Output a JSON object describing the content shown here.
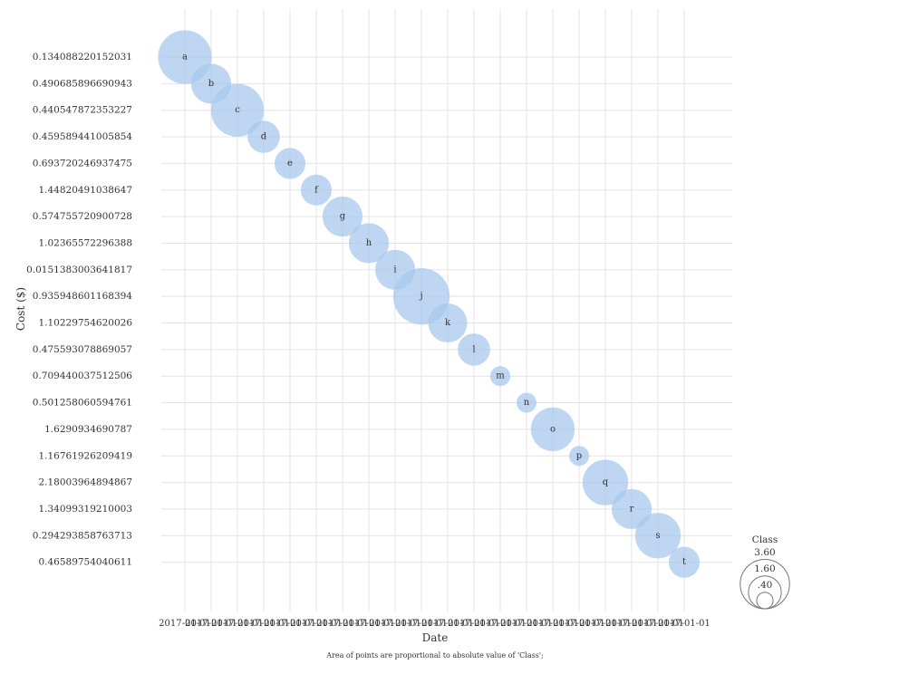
{
  "chart_data": {
    "type": "scatter",
    "xlabel": "Date",
    "ylabel": "Cost ($)",
    "caption": "Area of points are proportional to absolute value of 'Class';",
    "legend": {
      "title": "Class",
      "placement": "right",
      "values": [
        "3.60",
        "1.60",
        ".40"
      ],
      "magnitudes": [
        3.6,
        1.6,
        0.4
      ]
    },
    "x_ticks": [
      "2017-01-01",
      "2017-01-01",
      "2017-01-01",
      "2017-01-01",
      "2017-01-01",
      "2017-01-01",
      "2017-01-01",
      "2017-01-01",
      "2017-01-01",
      "2017-01-01",
      "2017-01-01",
      "2017-01-01",
      "2017-01-01",
      "2017-01-01",
      "2017-01-01",
      "2017-01-01",
      "2017-01-01",
      "2017-01-01",
      "2017-01-01",
      "2017-01-01"
    ],
    "categories": [
      "0.134088220152031",
      "0.490685896690943",
      "0.440547872353227",
      "0.459589441005854",
      "0.693720246937475",
      "1.44820491038647",
      "0.574755720900728",
      "1.02365572296388",
      "0.0151383003641817",
      "0.935948601168394",
      "1.10229754620026",
      "0.475593078869057",
      "0.709440037512506",
      "0.501258060594761",
      "1.6290934690787",
      "1.16761926209419",
      "2.18003964894867",
      "1.34099319210003",
      "0.294293858763713",
      "0.46589754040611"
    ],
    "points": [
      {
        "label": "a",
        "x": "2017-01-01",
        "y": "0.134088220152031",
        "size": 3.6
      },
      {
        "label": "b",
        "x": "2017-01-01",
        "y": "0.490685896690943",
        "size": 2.0
      },
      {
        "label": "c",
        "x": "2017-01-01",
        "y": "0.440547872353227",
        "size": 3.5
      },
      {
        "label": "d",
        "x": "2017-01-01",
        "y": "0.459589441005854",
        "size": 1.3
      },
      {
        "label": "e",
        "x": "2017-01-01",
        "y": "0.693720246937475",
        "size": 1.2
      },
      {
        "label": "f",
        "x": "2017-01-01",
        "y": "1.44820491038647",
        "size": 1.2
      },
      {
        "label": "g",
        "x": "2017-01-01",
        "y": "0.574755720900728",
        "size": 2.0
      },
      {
        "label": "h",
        "x": "2017-01-01",
        "y": "1.02365572296388",
        "size": 2.0
      },
      {
        "label": "i",
        "x": "2017-01-01",
        "y": "0.0151383003641817",
        "size": 2.0
      },
      {
        "label": "j",
        "x": "2017-01-01",
        "y": "0.935948601168394",
        "size": 4.0
      },
      {
        "label": "k",
        "x": "2017-01-01",
        "y": "1.10229754620026",
        "size": 1.9
      },
      {
        "label": "l",
        "x": "2017-01-01",
        "y": "0.475593078869057",
        "size": 1.3
      },
      {
        "label": "m",
        "x": "2017-01-01",
        "y": "0.709440037512506",
        "size": 0.5
      },
      {
        "label": "n",
        "x": "2017-01-01",
        "y": "0.501258060594761",
        "size": 0.5
      },
      {
        "label": "o",
        "x": "2017-01-01",
        "y": "1.6290934690787",
        "size": 2.4
      },
      {
        "label": "p",
        "x": "2017-01-01",
        "y": "1.16761926209419",
        "size": 0.5
      },
      {
        "label": "q",
        "x": "2017-01-01",
        "y": "2.18003964894867",
        "size": 2.6
      },
      {
        "label": "r",
        "x": "2017-01-01",
        "y": "1.34099319210003",
        "size": 2.0
      },
      {
        "label": "s",
        "x": "2017-01-01",
        "y": "0.294293858763713",
        "size": 2.6
      },
      {
        "label": "t",
        "x": "2017-01-01",
        "y": "0.46589754040611",
        "size": 1.2
      }
    ],
    "grid": true,
    "colors": {
      "bubble": "#a8c8ec",
      "grid": "#e3e3e3",
      "text": "#333333"
    }
  }
}
